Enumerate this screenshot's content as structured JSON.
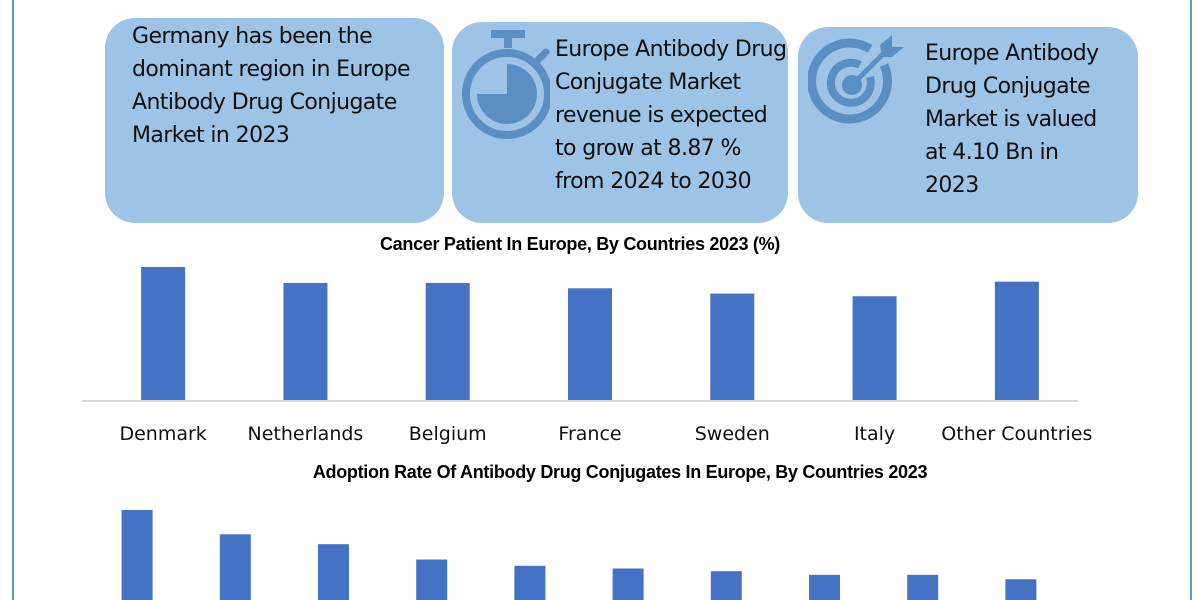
{
  "cards": [
    {
      "text_lines": [
        "Germany has been the",
        "dominant region in Europe",
        "Antibody Drug Conjugate",
        "Market in 2023"
      ]
    },
    {
      "icon": "stopwatch-icon",
      "text_lines": [
        "Europe Antibody Drug",
        "Conjugate Market",
        "revenue is expected",
        "to grow at 8.87 %",
        "from 2024 to 2030"
      ]
    },
    {
      "icon": "target-icon",
      "text_lines": [
        "Europe Antibody",
        "Drug Conjugate",
        "Market is valued",
        "at 4.10 Bn in",
        "2023"
      ]
    }
  ],
  "colors": {
    "card_bg": "#9dc3e6",
    "icon": "#5b8fc3",
    "bar": "#4472c4",
    "axis": "#d9d9d9",
    "frame": "#5b9bd5"
  },
  "chart_data": [
    {
      "type": "bar",
      "title": "Cancer Patient In Europe, By Countries 2023 (%)",
      "categories": [
        "Denmark",
        "Netherlands",
        "Belgium",
        "France",
        "Sweden",
        "Italy",
        "Other Countries"
      ],
      "values": [
        100,
        88,
        88,
        84,
        80,
        78,
        89
      ],
      "xlabel": "",
      "ylabel": "",
      "ylim": [
        0,
        100
      ],
      "grid": false,
      "legend": "none",
      "y_axis_visible": false
    },
    {
      "type": "bar",
      "title": "Adoption Rate Of Antibody Drug Conjugates In Europe, By Countries 2023",
      "categories": [
        "",
        "",
        "",
        "",
        "",
        "",
        "",
        "",
        "",
        ""
      ],
      "values": [
        100,
        73,
        62,
        45,
        38,
        35,
        32,
        28,
        28,
        23
      ],
      "xlabel": "",
      "ylabel": "",
      "ylim": [
        0,
        100
      ],
      "grid": false,
      "legend": "none",
      "y_axis_visible": false,
      "note": "chart cut off at bottom of image; values are relative heights"
    }
  ]
}
